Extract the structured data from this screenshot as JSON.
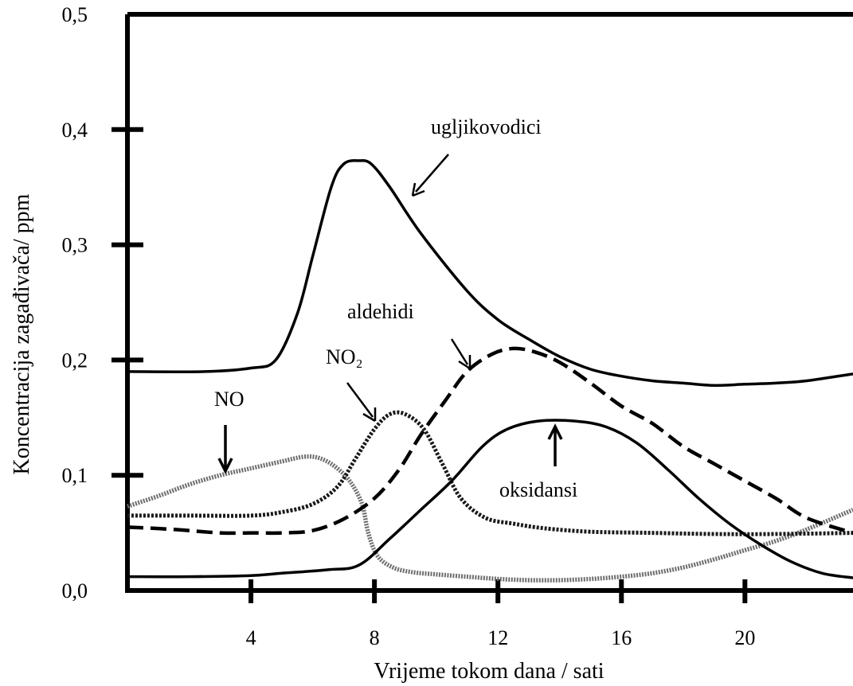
{
  "chart_data": {
    "type": "line",
    "title": "",
    "xlabel": "Vrijeme tokom dana / sati",
    "ylabel": "Koncentracija zagađivača/ ppm",
    "xlim": [
      0,
      23.5
    ],
    "ylim": [
      0,
      0.5
    ],
    "x_ticks": [
      4,
      8,
      12,
      16,
      20
    ],
    "x_tick_labels": [
      "4",
      "8",
      "12",
      "16",
      "20"
    ],
    "y_ticks": [
      0,
      0.1,
      0.2,
      0.3,
      0.4,
      0.5
    ],
    "y_tick_labels": [
      "0,0",
      "0,1",
      "0,2",
      "0,3",
      "0,4",
      "0,5"
    ],
    "grid": false,
    "legend": "none",
    "series": [
      {
        "name": "ugljikovodici",
        "style": "solid",
        "x": [
          0,
          2.5,
          4,
          4.8,
          5.5,
          6,
          6.6,
          7,
          7.5,
          7.9,
          8.5,
          9.5,
          11,
          12,
          13,
          14,
          15,
          16,
          17,
          18,
          19,
          20,
          21,
          22,
          23.5
        ],
        "y": [
          0.19,
          0.19,
          0.193,
          0.2,
          0.24,
          0.29,
          0.35,
          0.37,
          0.373,
          0.37,
          0.35,
          0.31,
          0.26,
          0.235,
          0.218,
          0.203,
          0.192,
          0.186,
          0.182,
          0.18,
          0.178,
          0.179,
          0.18,
          0.182,
          0.188
        ]
      },
      {
        "name": "NO",
        "style": "dotted-gray",
        "x": [
          0,
          1,
          2,
          3,
          4,
          5,
          5.7,
          6.2,
          6.7,
          7.2,
          7.6,
          7.8,
          8.1,
          8.6,
          9.2,
          10,
          11,
          12,
          13,
          14,
          15,
          16,
          17,
          18,
          19,
          20,
          21,
          22,
          23.5
        ],
        "y": [
          0.073,
          0.082,
          0.092,
          0.1,
          0.106,
          0.112,
          0.116,
          0.115,
          0.108,
          0.095,
          0.075,
          0.05,
          0.03,
          0.02,
          0.016,
          0.014,
          0.012,
          0.01,
          0.009,
          0.009,
          0.01,
          0.012,
          0.015,
          0.02,
          0.027,
          0.035,
          0.043,
          0.053,
          0.07
        ]
      },
      {
        "name": "NO₂",
        "style": "dotted",
        "x": [
          0,
          2,
          4,
          5,
          6,
          6.8,
          7.4,
          8,
          8.5,
          9,
          9.6,
          10.2,
          10.8,
          11.6,
          12.5,
          13.5,
          15,
          17,
          19,
          21,
          23.5
        ],
        "y": [
          0.065,
          0.065,
          0.065,
          0.068,
          0.075,
          0.09,
          0.115,
          0.14,
          0.153,
          0.153,
          0.14,
          0.11,
          0.08,
          0.063,
          0.058,
          0.054,
          0.051,
          0.05,
          0.049,
          0.049,
          0.05
        ]
      },
      {
        "name": "aldehidi",
        "style": "dashed",
        "x": [
          0,
          1.5,
          3,
          4,
          5,
          6,
          7,
          8,
          8.8,
          9.5,
          10.3,
          11,
          11.8,
          12.5,
          13.2,
          14,
          15,
          16,
          17,
          18,
          19,
          20,
          21,
          22,
          23.5
        ],
        "y": [
          0.055,
          0.053,
          0.05,
          0.05,
          0.05,
          0.052,
          0.062,
          0.08,
          0.105,
          0.135,
          0.165,
          0.19,
          0.205,
          0.21,
          0.207,
          0.198,
          0.18,
          0.16,
          0.145,
          0.125,
          0.11,
          0.095,
          0.08,
          0.063,
          0.05
        ]
      },
      {
        "name": "oksidansi",
        "style": "solid",
        "x": [
          0,
          2,
          4,
          5,
          6.5,
          7.5,
          8.5,
          9.5,
          10.5,
          11.5,
          12.3,
          13.3,
          14.5,
          15.5,
          16.5,
          17.5,
          18.5,
          19.5,
          20.5,
          21.5,
          22.5,
          23.5
        ],
        "y": [
          0.012,
          0.012,
          0.013,
          0.015,
          0.018,
          0.022,
          0.045,
          0.07,
          0.095,
          0.125,
          0.14,
          0.147,
          0.147,
          0.142,
          0.128,
          0.105,
          0.08,
          0.058,
          0.04,
          0.025,
          0.015,
          0.011
        ]
      }
    ],
    "annotations": [
      {
        "text": "ugljikovodici",
        "series": "ugljikovodici"
      },
      {
        "text": "aldehidi",
        "series": "aldehidi"
      },
      {
        "text": "NO₂",
        "series": "NO₂"
      },
      {
        "text": "NO",
        "series": "NO"
      },
      {
        "text": "oksidansi",
        "series": "oksidansi"
      }
    ]
  }
}
